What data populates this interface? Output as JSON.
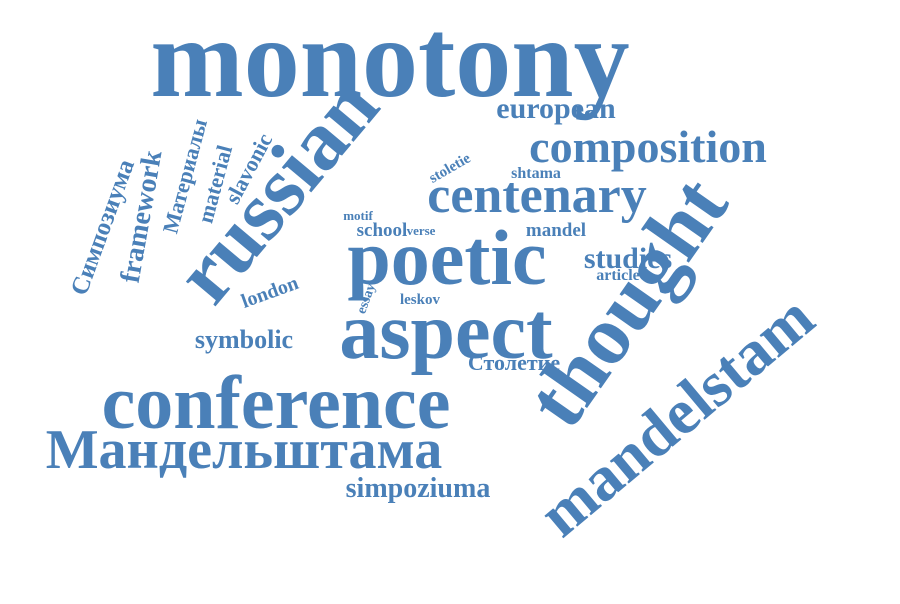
{
  "word_cloud": {
    "color": "#4a80b8",
    "words": [
      {
        "text": "monotony"
      },
      {
        "text": "russian"
      },
      {
        "text": "european"
      },
      {
        "text": "composition"
      },
      {
        "text": "centenary"
      },
      {
        "text": "stoletie"
      },
      {
        "text": "shtama"
      },
      {
        "text": "thought"
      },
      {
        "text": "mandelstam"
      },
      {
        "text": "poetic"
      },
      {
        "text": "motif"
      },
      {
        "text": "school"
      },
      {
        "text": "verse"
      },
      {
        "text": "mandel"
      },
      {
        "text": "studies"
      },
      {
        "text": "article"
      },
      {
        "text": "aspect"
      },
      {
        "text": "london"
      },
      {
        "text": "essay"
      },
      {
        "text": "leskov"
      },
      {
        "text": "symbolic"
      },
      {
        "text": "Столетие"
      },
      {
        "text": "conference"
      },
      {
        "text": "Мандельштама"
      },
      {
        "text": "simpoziuma"
      },
      {
        "text": "Симпозиума"
      },
      {
        "text": "framework"
      },
      {
        "text": "Материалы"
      },
      {
        "text": "material"
      },
      {
        "text": "slavonic"
      }
    ]
  }
}
